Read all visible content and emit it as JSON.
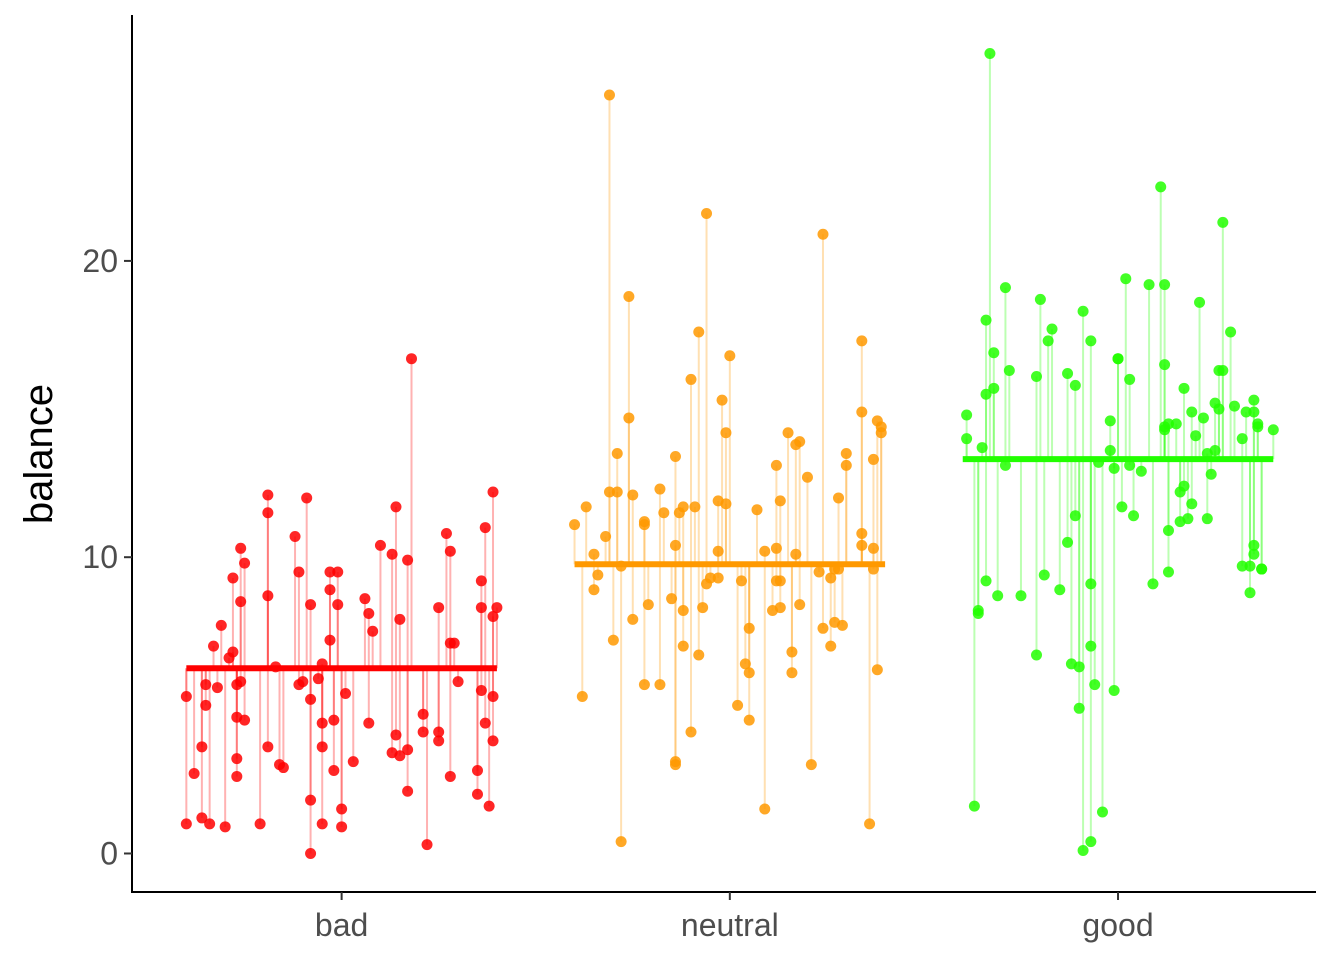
{
  "chart_data": {
    "type": "scatter",
    "title": "",
    "xlabel": "",
    "ylabel": "balance",
    "categories": [
      "bad",
      "neutral",
      "good"
    ],
    "ylim": [
      -1.3,
      28.3
    ],
    "xlim": [
      0.46,
      3.51
    ],
    "yticks": [
      0,
      10,
      20
    ],
    "ytick_labels": [
      "0",
      "10",
      "20"
    ],
    "grid": false,
    "legend": "none",
    "colors": {
      "bad": "#ff0000",
      "neutral": "#ff9900",
      "good": "#22ff00"
    },
    "groups": [
      {
        "name": "bad",
        "mean": 6.25,
        "points": [
          [
            -0.4,
            5.3
          ],
          [
            -0.4,
            1.0
          ],
          [
            -0.38,
            2.7
          ],
          [
            -0.36,
            3.6
          ],
          [
            -0.36,
            1.2
          ],
          [
            -0.35,
            5.7
          ],
          [
            -0.35,
            5.0
          ],
          [
            -0.34,
            1.0
          ],
          [
            -0.33,
            7.0
          ],
          [
            -0.32,
            5.6
          ],
          [
            -0.31,
            7.7
          ],
          [
            -0.3,
            0.9
          ],
          [
            -0.29,
            6.6
          ],
          [
            -0.28,
            9.3
          ],
          [
            -0.28,
            6.8
          ],
          [
            -0.27,
            5.7
          ],
          [
            -0.27,
            3.2
          ],
          [
            -0.27,
            2.6
          ],
          [
            -0.27,
            4.6
          ],
          [
            -0.26,
            10.3
          ],
          [
            -0.26,
            5.8
          ],
          [
            -0.26,
            8.5
          ],
          [
            -0.25,
            4.5
          ],
          [
            -0.25,
            9.8
          ],
          [
            -0.21,
            1.0
          ],
          [
            -0.19,
            3.6
          ],
          [
            -0.19,
            12.1
          ],
          [
            -0.19,
            11.5
          ],
          [
            -0.19,
            8.7
          ],
          [
            -0.17,
            6.3
          ],
          [
            -0.16,
            3.0
          ],
          [
            -0.15,
            2.9
          ],
          [
            -0.12,
            10.7
          ],
          [
            -0.11,
            9.5
          ],
          [
            -0.11,
            5.7
          ],
          [
            -0.1,
            5.8
          ],
          [
            -0.09,
            12.0
          ],
          [
            -0.08,
            5.2
          ],
          [
            -0.08,
            1.8
          ],
          [
            -0.08,
            0.0
          ],
          [
            -0.08,
            8.4
          ],
          [
            -0.06,
            5.9
          ],
          [
            -0.05,
            1.0
          ],
          [
            -0.05,
            4.4
          ],
          [
            -0.05,
            3.6
          ],
          [
            -0.05,
            6.4
          ],
          [
            -0.03,
            8.9
          ],
          [
            -0.03,
            7.2
          ],
          [
            -0.03,
            9.5
          ],
          [
            -0.02,
            4.5
          ],
          [
            -0.02,
            2.8
          ],
          [
            -0.01,
            9.5
          ],
          [
            -0.01,
            8.4
          ],
          [
            0.0,
            1.5
          ],
          [
            0.0,
            0.9
          ],
          [
            0.01,
            5.4
          ],
          [
            0.03,
            3.1
          ],
          [
            0.06,
            8.6
          ],
          [
            0.07,
            8.1
          ],
          [
            0.07,
            4.4
          ],
          [
            0.08,
            7.5
          ],
          [
            0.1,
            10.4
          ],
          [
            0.13,
            3.4
          ],
          [
            0.13,
            10.1
          ],
          [
            0.14,
            11.7
          ],
          [
            0.14,
            4.0
          ],
          [
            0.15,
            3.3
          ],
          [
            0.15,
            7.9
          ],
          [
            0.17,
            9.9
          ],
          [
            0.17,
            3.5
          ],
          [
            0.17,
            2.1
          ],
          [
            0.18,
            16.7
          ],
          [
            0.21,
            4.7
          ],
          [
            0.21,
            4.1
          ],
          [
            0.22,
            0.3
          ],
          [
            0.25,
            8.3
          ],
          [
            0.25,
            4.1
          ],
          [
            0.25,
            3.8
          ],
          [
            0.27,
            10.8
          ],
          [
            0.28,
            10.2
          ],
          [
            0.28,
            7.1
          ],
          [
            0.29,
            7.1
          ],
          [
            0.28,
            2.6
          ],
          [
            0.3,
            5.8
          ],
          [
            0.35,
            2.8
          ],
          [
            0.35,
            2.0
          ],
          [
            0.36,
            8.3
          ],
          [
            0.36,
            9.2
          ],
          [
            0.36,
            5.5
          ],
          [
            0.37,
            4.4
          ],
          [
            0.37,
            11.0
          ],
          [
            0.38,
            1.6
          ],
          [
            0.39,
            12.2
          ],
          [
            0.39,
            8.0
          ],
          [
            0.39,
            5.3
          ],
          [
            0.39,
            3.8
          ],
          [
            0.4,
            8.3
          ]
        ]
      },
      {
        "name": "neutral",
        "mean": 9.76,
        "points": [
          [
            -0.4,
            11.1
          ],
          [
            -0.38,
            5.3
          ],
          [
            -0.37,
            11.7
          ],
          [
            -0.35,
            10.1
          ],
          [
            -0.35,
            8.9
          ],
          [
            -0.34,
            9.4
          ],
          [
            -0.32,
            10.7
          ],
          [
            -0.31,
            25.6
          ],
          [
            -0.31,
            12.2
          ],
          [
            -0.3,
            7.2
          ],
          [
            -0.29,
            13.5
          ],
          [
            -0.29,
            12.2
          ],
          [
            -0.28,
            9.7
          ],
          [
            -0.28,
            0.4
          ],
          [
            -0.26,
            18.8
          ],
          [
            -0.26,
            14.7
          ],
          [
            -0.25,
            7.9
          ],
          [
            -0.25,
            12.1
          ],
          [
            -0.22,
            11.2
          ],
          [
            -0.22,
            11.1
          ],
          [
            -0.22,
            5.7
          ],
          [
            -0.21,
            8.4
          ],
          [
            -0.18,
            12.3
          ],
          [
            -0.18,
            5.7
          ],
          [
            -0.17,
            11.5
          ],
          [
            -0.15,
            8.6
          ],
          [
            -0.14,
            3.0
          ],
          [
            -0.14,
            3.1
          ],
          [
            -0.14,
            13.4
          ],
          [
            -0.14,
            10.4
          ],
          [
            -0.13,
            11.5
          ],
          [
            -0.12,
            8.2
          ],
          [
            -0.12,
            7.0
          ],
          [
            -0.12,
            11.7
          ],
          [
            -0.1,
            16.0
          ],
          [
            -0.1,
            4.1
          ],
          [
            -0.09,
            11.7
          ],
          [
            -0.08,
            17.6
          ],
          [
            -0.08,
            6.7
          ],
          [
            -0.07,
            8.3
          ],
          [
            -0.06,
            21.6
          ],
          [
            -0.06,
            9.1
          ],
          [
            -0.05,
            9.3
          ],
          [
            -0.03,
            9.3
          ],
          [
            -0.03,
            10.2
          ],
          [
            -0.03,
            11.9
          ],
          [
            -0.02,
            15.3
          ],
          [
            -0.01,
            11.8
          ],
          [
            -0.01,
            14.2
          ],
          [
            0.0,
            16.8
          ],
          [
            0.02,
            5.0
          ],
          [
            0.03,
            9.2
          ],
          [
            0.04,
            6.4
          ],
          [
            0.05,
            6.1
          ],
          [
            0.05,
            4.5
          ],
          [
            0.05,
            7.6
          ],
          [
            0.07,
            11.6
          ],
          [
            0.09,
            1.5
          ],
          [
            0.09,
            10.2
          ],
          [
            0.11,
            8.2
          ],
          [
            0.12,
            10.3
          ],
          [
            0.12,
            13.1
          ],
          [
            0.12,
            9.2
          ],
          [
            0.13,
            11.9
          ],
          [
            0.13,
            9.2
          ],
          [
            0.13,
            8.3
          ],
          [
            0.15,
            14.2
          ],
          [
            0.16,
            6.8
          ],
          [
            0.16,
            6.1
          ],
          [
            0.17,
            13.8
          ],
          [
            0.17,
            10.1
          ],
          [
            0.18,
            8.4
          ],
          [
            0.18,
            13.9
          ],
          [
            0.2,
            12.7
          ],
          [
            0.21,
            3.0
          ],
          [
            0.23,
            9.5
          ],
          [
            0.24,
            20.9
          ],
          [
            0.24,
            7.6
          ],
          [
            0.26,
            9.3
          ],
          [
            0.26,
            7.0
          ],
          [
            0.27,
            9.6
          ],
          [
            0.27,
            7.8
          ],
          [
            0.28,
            12.0
          ],
          [
            0.28,
            9.6
          ],
          [
            0.29,
            7.7
          ],
          [
            0.3,
            13.5
          ],
          [
            0.3,
            13.1
          ],
          [
            0.34,
            14.9
          ],
          [
            0.34,
            17.3
          ],
          [
            0.34,
            10.8
          ],
          [
            0.34,
            10.4
          ],
          [
            0.36,
            1.0
          ],
          [
            0.37,
            13.3
          ],
          [
            0.37,
            10.3
          ],
          [
            0.37,
            9.6
          ],
          [
            0.38,
            6.2
          ],
          [
            0.38,
            14.6
          ],
          [
            0.39,
            14.4
          ],
          [
            0.39,
            14.2
          ]
        ]
      },
      {
        "name": "good",
        "mean": 13.31,
        "points": [
          [
            -0.39,
            14.8
          ],
          [
            -0.39,
            14.0
          ],
          [
            -0.37,
            1.6
          ],
          [
            -0.36,
            8.1
          ],
          [
            -0.36,
            8.2
          ],
          [
            -0.35,
            13.7
          ],
          [
            -0.34,
            18.0
          ],
          [
            -0.34,
            9.2
          ],
          [
            -0.34,
            15.5
          ],
          [
            -0.33,
            27.0
          ],
          [
            -0.32,
            16.9
          ],
          [
            -0.32,
            15.7
          ],
          [
            -0.31,
            8.7
          ],
          [
            -0.29,
            19.1
          ],
          [
            -0.29,
            13.1
          ],
          [
            -0.28,
            16.3
          ],
          [
            -0.25,
            8.7
          ],
          [
            -0.21,
            6.7
          ],
          [
            -0.21,
            16.1
          ],
          [
            -0.2,
            18.7
          ],
          [
            -0.19,
            9.4
          ],
          [
            -0.18,
            17.3
          ],
          [
            -0.17,
            17.7
          ],
          [
            -0.15,
            8.9
          ],
          [
            -0.13,
            10.5
          ],
          [
            -0.13,
            16.2
          ],
          [
            -0.12,
            6.4
          ],
          [
            -0.11,
            15.8
          ],
          [
            -0.11,
            11.4
          ],
          [
            -0.1,
            6.3
          ],
          [
            -0.1,
            4.9
          ],
          [
            -0.09,
            0.1
          ],
          [
            -0.09,
            18.3
          ],
          [
            -0.07,
            0.4
          ],
          [
            -0.07,
            9.1
          ],
          [
            -0.07,
            7.0
          ],
          [
            -0.07,
            17.3
          ],
          [
            -0.06,
            5.7
          ],
          [
            -0.05,
            13.2
          ],
          [
            -0.04,
            1.4
          ],
          [
            -0.02,
            14.6
          ],
          [
            -0.02,
            13.6
          ],
          [
            -0.01,
            5.5
          ],
          [
            -0.01,
            13.0
          ],
          [
            0.0,
            16.7
          ],
          [
            0.0,
            16.7
          ],
          [
            0.01,
            11.7
          ],
          [
            0.02,
            19.4
          ],
          [
            0.03,
            13.1
          ],
          [
            0.03,
            16.0
          ],
          [
            0.04,
            11.4
          ],
          [
            0.06,
            12.9
          ],
          [
            0.08,
            19.2
          ],
          [
            0.09,
            9.1
          ],
          [
            0.11,
            22.5
          ],
          [
            0.12,
            19.2
          ],
          [
            0.12,
            14.4
          ],
          [
            0.12,
            16.5
          ],
          [
            0.12,
            14.3
          ],
          [
            0.13,
            10.9
          ],
          [
            0.13,
            14.5
          ],
          [
            0.13,
            9.5
          ],
          [
            0.15,
            14.5
          ],
          [
            0.16,
            12.2
          ],
          [
            0.16,
            11.2
          ],
          [
            0.17,
            15.7
          ],
          [
            0.17,
            12.4
          ],
          [
            0.18,
            11.3
          ],
          [
            0.19,
            11.8
          ],
          [
            0.19,
            14.9
          ],
          [
            0.2,
            14.1
          ],
          [
            0.21,
            18.6
          ],
          [
            0.22,
            14.7
          ],
          [
            0.23,
            13.5
          ],
          [
            0.23,
            11.3
          ],
          [
            0.24,
            12.8
          ],
          [
            0.25,
            13.6
          ],
          [
            0.25,
            15.2
          ],
          [
            0.26,
            16.3
          ],
          [
            0.26,
            15.0
          ],
          [
            0.27,
            16.3
          ],
          [
            0.27,
            21.3
          ],
          [
            0.29,
            17.6
          ],
          [
            0.3,
            15.1
          ],
          [
            0.32,
            9.7
          ],
          [
            0.32,
            14.0
          ],
          [
            0.33,
            14.9
          ],
          [
            0.34,
            9.7
          ],
          [
            0.34,
            8.8
          ],
          [
            0.35,
            15.3
          ],
          [
            0.35,
            10.4
          ],
          [
            0.35,
            14.9
          ],
          [
            0.35,
            10.1
          ],
          [
            0.36,
            14.5
          ],
          [
            0.36,
            14.4
          ],
          [
            0.37,
            9.6
          ],
          [
            0.37,
            9.6
          ],
          [
            0.4,
            14.3
          ]
        ]
      }
    ]
  }
}
